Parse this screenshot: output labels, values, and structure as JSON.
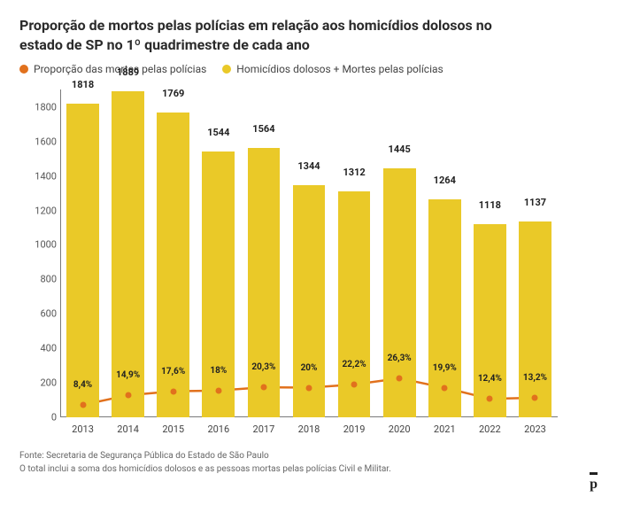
{
  "title": "Proporção de mortos pelas polícias em relação aos homicídios dolosos no estado de SP no 1º quadrimestre de cada ano",
  "legend": {
    "series_line": {
      "label": "Proporção das mortes pelas polícias",
      "color": "#e1711d"
    },
    "series_bar": {
      "label": "Homicídios dolosos + Mortes pelas polícias",
      "color": "#eac928"
    }
  },
  "chart": {
    "type": "bar+line",
    "background_color": "#ffffff",
    "axis_color": "#7a7a7a",
    "tick_font_size": 11,
    "title_font_size": 16,
    "categories": [
      "2013",
      "2014",
      "2015",
      "2016",
      "2017",
      "2018",
      "2019",
      "2020",
      "2021",
      "2022",
      "2023"
    ],
    "bar": {
      "color": "#eac928",
      "width_ratio": 0.72,
      "values": [
        1818,
        1889,
        1769,
        1544,
        1564,
        1344,
        1312,
        1445,
        1264,
        1118,
        1137
      ],
      "value_labels": [
        "1818",
        "1889",
        "1769",
        "1544",
        "1564",
        "1344",
        "1312",
        "1445",
        "1264",
        "1118",
        "1137"
      ]
    },
    "line": {
      "color": "#e1711d",
      "marker_color": "#e1711d",
      "line_width": 2.5,
      "marker_radius": 3.5,
      "values_pct": [
        8.4,
        14.9,
        17.6,
        18.0,
        20.3,
        20.0,
        22.2,
        26.3,
        19.9,
        12.4,
        13.2
      ],
      "pct_labels": [
        "8,4%",
        "14,9%",
        "17,6%",
        "18%",
        "20,3%",
        "20%",
        "22,2%",
        "26,3%",
        "19,9%",
        "12,4%",
        "13,2%"
      ],
      "scaled_values": [
        72,
        128,
        151,
        155,
        174,
        172,
        190,
        226,
        171,
        107,
        113
      ]
    },
    "y_axis": {
      "min": 0,
      "max": 1900,
      "ticks": [
        0,
        200,
        400,
        600,
        800,
        1000,
        1200,
        1400,
        1600,
        1800
      ]
    }
  },
  "footer": {
    "source": "Fonte: Secretaria de Segurança Pública do Estado de São Paulo",
    "note": "O total inclui a soma dos homicídios dolosos e as pessoas mortas pelas polícias Civil e Militar."
  },
  "logo_text": "p"
}
